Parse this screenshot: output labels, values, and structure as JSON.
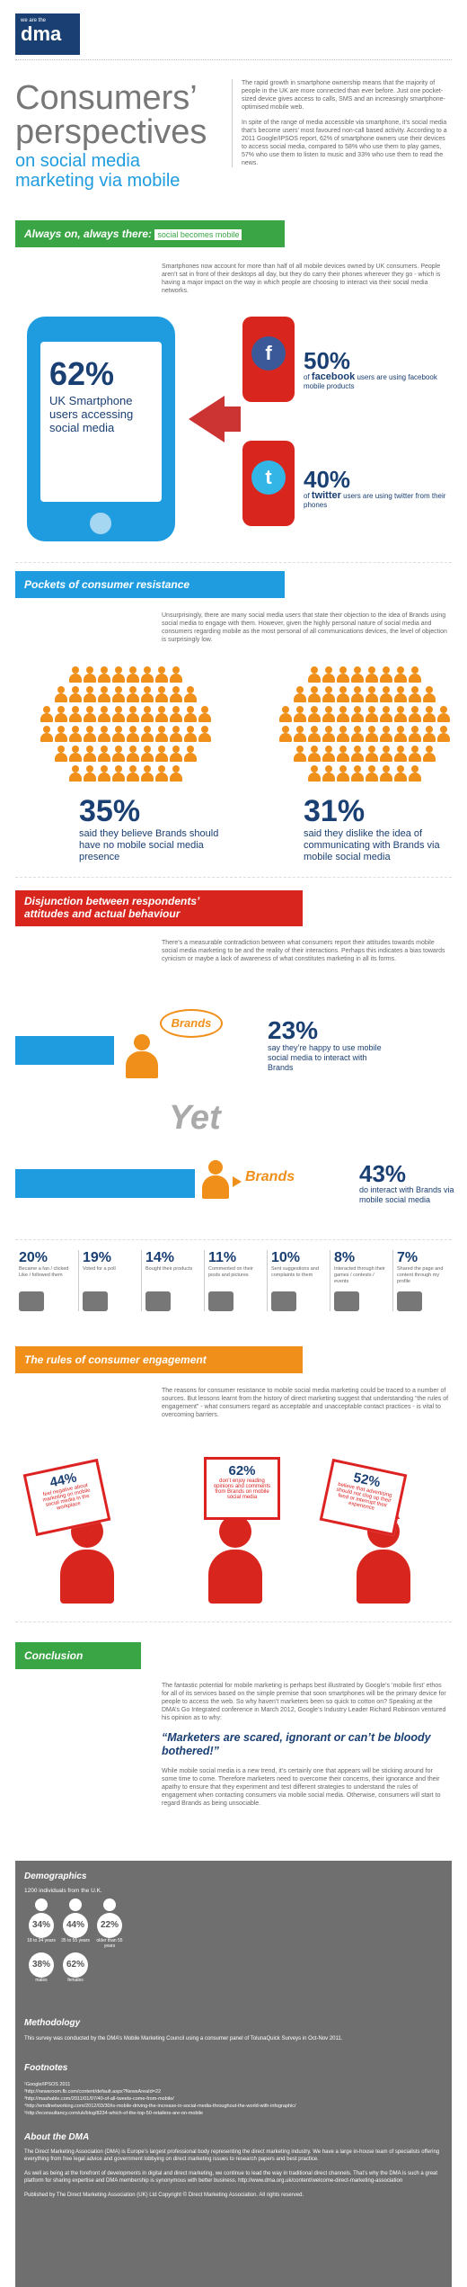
{
  "header": {
    "logo_small": "we are the",
    "logo": "dma",
    "title_line1": "Consumers’",
    "title_line2": "perspectives",
    "subtitle_line1": "on social media",
    "subtitle_line2": "marketing via mobile",
    "intro_p1": "The rapid growth in smartphone ownership means that the majority of people in the UK are more connected than ever before. Just one pocket-sized device gives access to calls, SMS and an increasingly smartphone-optimised mobile web.",
    "intro_p2": "In spite of the range of media accessible via smartphone, it’s social media that’s become users’ most favoured non-call based activity. According to a 2011 Google/IPSOS report, 62% of smartphone owners use their devices to access social media, compared to 58% who use them to play games, 57% who use them to listen to music and 33% who use them to read the news."
  },
  "section1": {
    "title_bold": "Always on, always there:",
    "title_rest": "social becomes mobile",
    "text": "Smartphones now account for more than half of all mobile devices owned by UK consumers. People aren’t sat in front of their desktops all day, but they do carry their phones wherever they go - which is having a major impact on the way in which people are choosing to interact via their social media networks.",
    "phone_pct": "62%",
    "phone_text": "UK Smartphone users accessing social media",
    "fb_pct": "50%",
    "fb_text_a": "of",
    "fb_brand": "facebook",
    "fb_text_b": "users are using facebook mobile products",
    "tw_pct": "40%",
    "tw_text_a": "of",
    "tw_brand": "twitter",
    "tw_text_b": "users are using twitter from their phones",
    "fb_icon_letter": "f",
    "tw_icon_letter": "t"
  },
  "section2": {
    "title": "Pockets of consumer resistance",
    "text": "Unsurprisingly, there are many social media users that state their objection to the idea of Brands using social media to engage with them. However, given the highly personal nature of social media and consumers regarding mobile as the most personal of all communications devices, the level of objection is surprisingly low.",
    "left_pct": "35%",
    "left_text": "said they believe Brands should have no mobile social media presence",
    "right_pct": "31%",
    "right_text": "said they dislike the idea of communicating with Brands via mobile social media"
  },
  "section3": {
    "title_line1": "Disjunction between respondents’",
    "title_line2": "attitudes and actual behaviour",
    "text": "There’s a measurable contradiction between what consumers report their attitudes towards mobile social media marketing to be and the reality of their interactions. Perhaps this indicates a bias towards cynicism or maybe a lack of awareness of what constitutes marketing in all its forms.",
    "brands_bubble": "Brands",
    "pct_a": "23%",
    "text_a": "say they’re happy to use mobile social media to interact with Brands",
    "yet": "Yet",
    "brands_arrow": "Brands",
    "pct_b": "43%",
    "text_b": "do interact with Brands via mobile social media",
    "stats": [
      {
        "pct": "20%",
        "label": "Became a fan / clicked Like / followed them"
      },
      {
        "pct": "19%",
        "label": "Voted for a poll"
      },
      {
        "pct": "14%",
        "label": "Bought their products"
      },
      {
        "pct": "11%",
        "label": "Commented on their posts and pictures"
      },
      {
        "pct": "10%",
        "label": "Sent suggestions and complaints to them"
      },
      {
        "pct": "8%",
        "label": "Interacted through their games / contests / events"
      },
      {
        "pct": "7%",
        "label": "Shared the page and content through my profile"
      }
    ]
  },
  "section4": {
    "title": "The rules of consumer engagement",
    "text": "The reasons for consumer resistance to mobile social media marketing could be traced to a number of sources. But lessons learnt from the history of direct marketing suggest that understanding “the rules of engagement” - what consumers regard as acceptable and unacceptable contact practices - is vital to overcoming barriers.",
    "signs": [
      {
        "pct": "44%",
        "text": "feel negative about marketing on mobile social media in the workplace"
      },
      {
        "pct": "62%",
        "text": "don’t enjoy reading opinions and comments from Brands on mobile social media"
      },
      {
        "pct": "52%",
        "text": "believe that advertising should not clog up their feed or interrupt their experience"
      }
    ]
  },
  "section5": {
    "title": "Conclusion",
    "p1": "The fantastic potential for mobile marketing is perhaps best illustrated by Google’s ‘mobile first’ ethos for all of its services based on the simple premise that soon smartphones will be the primary device for people to access the web. So why haven’t marketers been so quick to cotton on? Speaking at the DMA’s Go Integrated conference in March 2012, Google’s Industry Leader Richard Robinson ventured his opinion as to why:",
    "quote": "“Marketers are scared, ignorant or can’t be bloody bothered!”",
    "p2": "While mobile social media is a new trend, it’s certainly one that appears will be sticking around for some time to come. Therefore marketers need to overcome their concerns, their ignorance and their apathy to ensure that they experiment and test different strategies to understand the rules of engagement when contacting consumers via mobile social media. Otherwise, consumers will start to regard Brands as being unsociable."
  },
  "footer": {
    "demographics_title": "Demographics",
    "demographics_sub": "1200 individuals from the U.K.",
    "age_groups": [
      {
        "pct": "34%",
        "label": "18 to 34 years"
      },
      {
        "pct": "44%",
        "label": "35 to 55 years"
      },
      {
        "pct": "22%",
        "label": "older than 55 years"
      }
    ],
    "genders": [
      {
        "pct": "38%",
        "label": "males"
      },
      {
        "pct": "62%",
        "label": "females"
      }
    ],
    "methodology_title": "Methodology",
    "methodology_text": "This survey was conducted by the DMA’s Mobile Marketing Council using a consumer panel of TolunaQuick Surveys in Oct-Nov 2011.",
    "footnotes_title": "Footnotes",
    "footnotes": [
      "¹Google/IPSOS 2011",
      "²http://newsroom.fb.com/content/default.aspx?NewsAreaId=22",
      "³http://mashable.com/2011/01/07/40-of-all-tweets-come-from-mobile/",
      "⁴http://emdlnetworking.com/2012/03/30/is-mobile-driving-the-increase-in-social-media-throughout-the-world-with-infographic/",
      "⁵http://econsultancy.com/uk/blog/8234-which-of-the-top-50-retailers-are-on-mobile"
    ],
    "about_title": "About the DMA",
    "about_p1": "The Direct Marketing Association (DMA) is Europe’s largest professional body representing the direct marketing industry. We have a large in-house team of specialists offering everything from free legal advice and government lobbying on direct marketing issues to research papers and best practice.",
    "about_p2": "As well as being at the forefront of developments in digital and direct marketing, we continue to lead the way in traditional direct channels. That’s why the DMA is such a great platform for sharing expertise and DMA membership is synonymous with better business. http://www.dma.org.uk/content/welcome-direct-marketing-association",
    "published": "Published by The Direct Marketing Association (UK) Ltd Copyright © Direct Marketing Association. All rights reserved."
  },
  "colors": {
    "green": "#3aa545",
    "blue": "#1f9ce0",
    "red": "#d8261e",
    "orange": "#f0901a",
    "navy": "#1a3f73"
  }
}
